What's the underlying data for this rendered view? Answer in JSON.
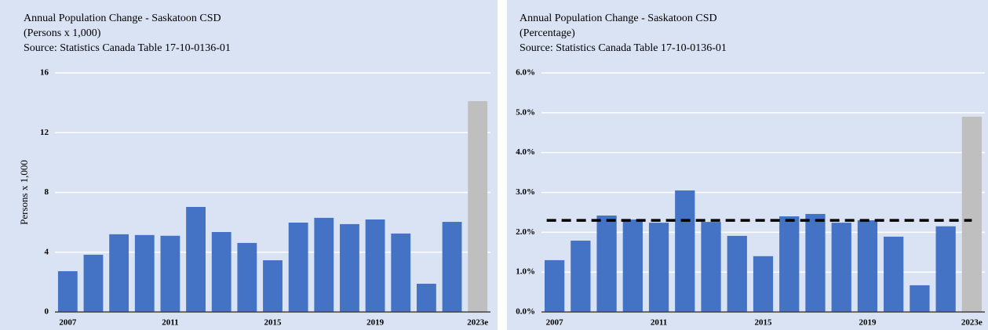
{
  "chart_data": [
    {
      "type": "bar",
      "title": "Annual Population Change - Saskatoon CSD",
      "subtitle": "(Persons x 1,000)",
      "source": "Source: Statistics Canada Table  17-10-0136-01",
      "y_label": "Persons x 1,000",
      "categories": [
        "2007",
        null,
        null,
        null,
        "2011",
        null,
        null,
        null,
        "2015",
        null,
        null,
        null,
        "2019",
        null,
        null,
        null,
        "2023e"
      ],
      "values": [
        2.73,
        3.83,
        5.2,
        5.15,
        5.1,
        7.03,
        5.35,
        4.62,
        3.46,
        5.98,
        6.3,
        5.88,
        6.19,
        5.25,
        1.89,
        6.03,
        14.11
      ],
      "colors": [
        "#4472c4",
        "#4472c4",
        "#4472c4",
        "#4472c4",
        "#4472c4",
        "#4472c4",
        "#4472c4",
        "#4472c4",
        "#4472c4",
        "#4472c4",
        "#4472c4",
        "#4472c4",
        "#4472c4",
        "#4472c4",
        "#4472c4",
        "#4472c4",
        "#bfbfbf"
      ],
      "ylim": [
        0,
        16
      ],
      "yticks": [
        0,
        4,
        8,
        12,
        16
      ],
      "grid": true
    },
    {
      "type": "bar",
      "title": "Annual Population Change - Saskatoon CSD",
      "subtitle": "(Percentage)",
      "source": "Source: Statistics Canada Table  17-10-0136-01",
      "categories": [
        "2007",
        null,
        null,
        null,
        "2011",
        null,
        null,
        null,
        "2015",
        null,
        null,
        null,
        "2019",
        null,
        null,
        null,
        "2023e"
      ],
      "values": [
        1.3,
        1.79,
        2.42,
        2.32,
        2.24,
        3.05,
        2.26,
        1.91,
        1.4,
        2.4,
        2.46,
        2.24,
        2.3,
        1.89,
        0.67,
        2.15,
        4.9
      ],
      "colors": [
        "#4472c4",
        "#4472c4",
        "#4472c4",
        "#4472c4",
        "#4472c4",
        "#4472c4",
        "#4472c4",
        "#4472c4",
        "#4472c4",
        "#4472c4",
        "#4472c4",
        "#4472c4",
        "#4472c4",
        "#4472c4",
        "#4472c4",
        "#4472c4",
        "#bfbfbf"
      ],
      "reference_line": 2.3,
      "ylim": [
        0,
        6
      ],
      "yticks": [
        {
          "value": 0,
          "label": "0.0%"
        },
        {
          "value": 1,
          "label": "1.0%"
        },
        {
          "value": 2,
          "label": "2.0%"
        },
        {
          "value": 3,
          "label": "3.0%"
        },
        {
          "value": 4,
          "label": "4.0%"
        },
        {
          "value": 5,
          "label": "5.0%"
        },
        {
          "value": 6,
          "label": "6.0%"
        }
      ],
      "grid": true
    }
  ]
}
